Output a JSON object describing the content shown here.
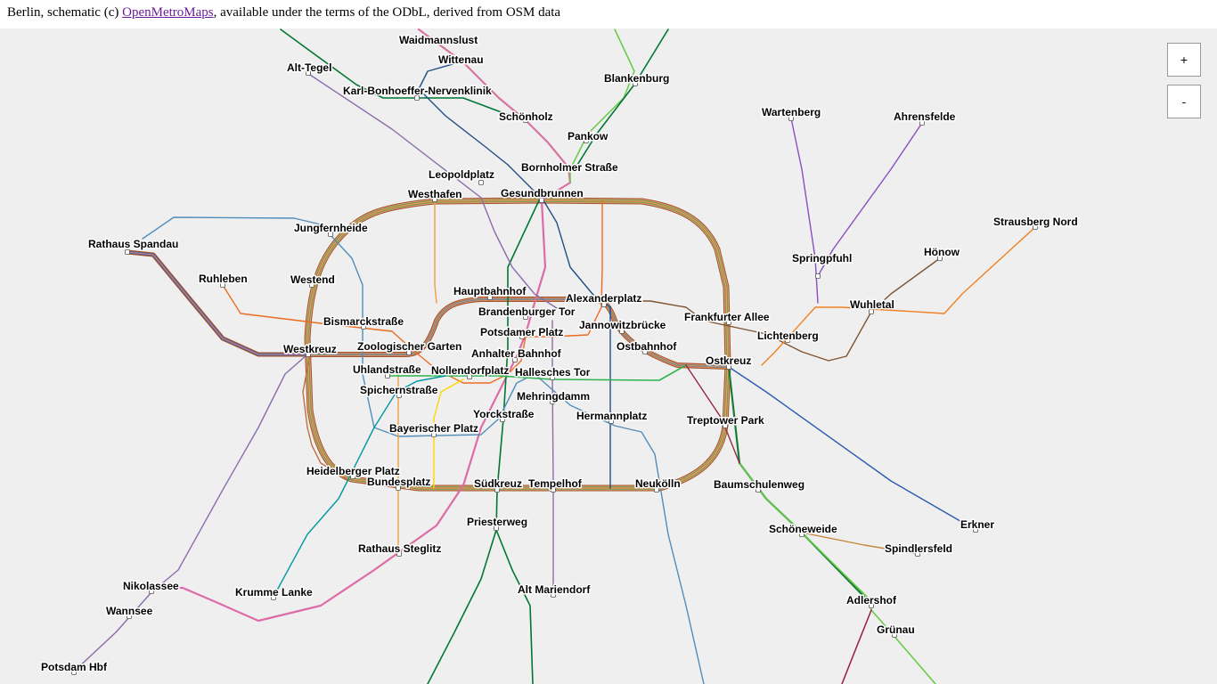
{
  "attribution": {
    "prefix": "Berlin, schematic (c) ",
    "link_text": "OpenMetroMaps",
    "suffix": ", available under the terms of the ODbL, derived from OSM data"
  },
  "controls": {
    "zoom_in": "+",
    "zoom_out": "-"
  },
  "colors": {
    "u1": "#7dad4c",
    "u2": "#da421e",
    "u3": "#16683d",
    "u4": "#f0d722",
    "u5": "#7e5330",
    "u6": "#8c6dab",
    "u7": "#528dba",
    "u8": "#224f86",
    "u9": "#f3791d",
    "s1": "#dd6ca6",
    "s2": "#007734",
    "s3": "#0a4c99",
    "s41": "#a23b1e",
    "s5": "#eb7405",
    "s7": "#816da6",
    "s8": "#66aa22",
    "s9": "#992746",
    "s25": "#0098a1",
    "s45": "#c38737",
    "s46": "#c38737",
    "s75": "#7b6b9f",
    "s47": "#c28a48",
    "s85": "#24a83a",
    "u55": "#3ab2e0",
    "ring_outer": "#a0522d"
  },
  "stations": [
    {
      "name": "Waidmannslust"
    },
    {
      "name": "Wittenau"
    },
    {
      "name": "Alt-Tegel"
    },
    {
      "name": "Blankenburg"
    },
    {
      "name": "Karl-Bonhoeffer-Nervenklinik"
    },
    {
      "name": "Schönholz"
    },
    {
      "name": "Wartenberg"
    },
    {
      "name": "Ahrensfelde"
    },
    {
      "name": "Pankow"
    },
    {
      "name": "Bornholmer Straße"
    },
    {
      "name": "Leopoldplatz"
    },
    {
      "name": "Westhafen"
    },
    {
      "name": "Gesundbrunnen"
    },
    {
      "name": "Strausberg Nord"
    },
    {
      "name": "Jungfernheide"
    },
    {
      "name": "Rathaus Spandau"
    },
    {
      "name": "Hönow"
    },
    {
      "name": "Springpfuhl"
    },
    {
      "name": "Ruhleben"
    },
    {
      "name": "Westend"
    },
    {
      "name": "Hauptbahnhof"
    },
    {
      "name": "Alexanderplatz"
    },
    {
      "name": "Wuhletal"
    },
    {
      "name": "Brandenburger Tor"
    },
    {
      "name": "Frankfurter Allee"
    },
    {
      "name": "Bismarckstraße"
    },
    {
      "name": "Jannowitzbrücke"
    },
    {
      "name": "Potsdamer Platz"
    },
    {
      "name": "Lichtenberg"
    },
    {
      "name": "Zoologischer Garten"
    },
    {
      "name": "Westkreuz"
    },
    {
      "name": "Ostbahnhof"
    },
    {
      "name": "Anhalter Bahnhof"
    },
    {
      "name": "Ostkreuz"
    },
    {
      "name": "Uhlandstraße"
    },
    {
      "name": "Nollendorfplatz"
    },
    {
      "name": "Hallesches Tor"
    },
    {
      "name": "Spichernstraße"
    },
    {
      "name": "Mehringdamm"
    },
    {
      "name": "Yorckstraße"
    },
    {
      "name": "Hermannplatz"
    },
    {
      "name": "Treptower Park"
    },
    {
      "name": "Bayerischer Platz"
    },
    {
      "name": "Heidelberger Platz"
    },
    {
      "name": "Bundesplatz"
    },
    {
      "name": "Südkreuz"
    },
    {
      "name": "Tempelhof"
    },
    {
      "name": "Neukölln"
    },
    {
      "name": "Baumschulenweg"
    },
    {
      "name": "Erkner"
    },
    {
      "name": "Priesterweg"
    },
    {
      "name": "Schöneweide"
    },
    {
      "name": "Rathaus Steglitz"
    },
    {
      "name": "Spindlersfeld"
    },
    {
      "name": "Alt Mariendorf"
    },
    {
      "name": "Nikolassee"
    },
    {
      "name": "Krumme Lanke"
    },
    {
      "name": "Adlershof"
    },
    {
      "name": "Wannsee"
    },
    {
      "name": "Grünau"
    },
    {
      "name": "Potsdam Hbf"
    }
  ]
}
